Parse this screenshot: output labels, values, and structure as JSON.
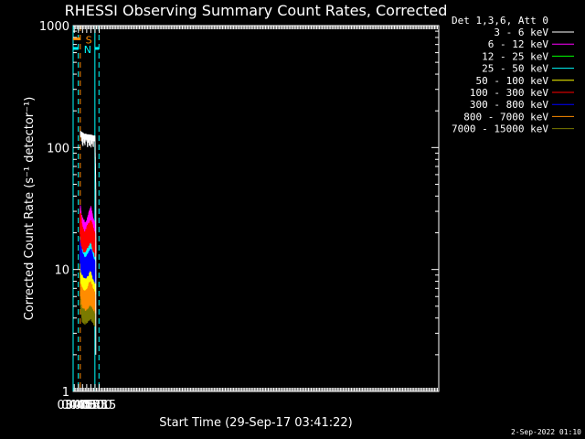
{
  "chart_data": {
    "type": "line",
    "title": "RHESSI Observing Summary Count Rates, Corrected",
    "xlabel": "Start Time (29-Sep-17 03:41:22)",
    "ylabel": "Corrected Count Rate (s⁻¹ detector⁻¹)",
    "footer_date": "2-Sep-2022 01:10",
    "x_range_min": [
      221,
      1540
    ],
    "y_range": [
      1,
      1000
    ],
    "y_scale": "log",
    "x_ticks": [
      {
        "min": 225,
        "label": "03:45"
      },
      {
        "min": 240,
        "label": "04:00"
      },
      {
        "min": 255,
        "label": "04:15"
      },
      {
        "min": 270,
        "label": "04:30"
      },
      {
        "min": 285,
        "label": "04:45"
      },
      {
        "min": 300,
        "label": "05:00"
      },
      {
        "min": 315,
        "label": "05:15"
      }
    ],
    "y_ticks": [
      {
        "value": 1,
        "label": "1"
      },
      {
        "value": 10,
        "label": "10"
      },
      {
        "value": 100,
        "label": "100"
      },
      {
        "value": 1000,
        "label": "1000"
      }
    ],
    "legend_header": "Det 1,3,6, Att 0",
    "legend_placement": "outside-right",
    "data_interval_min": [
      247.3,
      302.7
    ],
    "series": [
      {
        "name": "3 - 6 keV",
        "color": "#ffffff",
        "x": [
          247.3,
          250,
          255,
          260,
          265,
          270,
          275,
          280,
          285,
          290,
          295,
          300,
          302.7
        ],
        "y": [
          130,
          128,
          125,
          124,
          123,
          122,
          122,
          121,
          121,
          120,
          119,
          119,
          45
        ]
      },
      {
        "name": "6 - 12 keV",
        "color": "#ff00ff",
        "x": [
          247.3,
          250,
          255,
          260,
          265,
          270,
          275,
          280,
          285,
          290,
          295,
          300,
          302.7
        ],
        "y": [
          28,
          24,
          22,
          21,
          20,
          21,
          23,
          25,
          27,
          24,
          21,
          20,
          17
        ]
      },
      {
        "name": "12 - 25 keV",
        "color": "#00ff00",
        "x": [
          247.3,
          250,
          255,
          260,
          265,
          270,
          275,
          280,
          285,
          290,
          295,
          300,
          302.7
        ],
        "y": [
          26,
          22,
          20,
          19,
          18,
          19,
          21,
          23,
          25,
          22,
          19,
          18,
          16
        ]
      },
      {
        "name": "25 - 50 keV",
        "color": "#00ffff",
        "x": [
          247.3,
          250,
          255,
          260,
          265,
          270,
          275,
          280,
          285,
          290,
          295,
          300,
          302.7
        ],
        "y": [
          17,
          15,
          14,
          13,
          13,
          14,
          15,
          16,
          17,
          15,
          14,
          13,
          12
        ]
      },
      {
        "name": "50 - 100 keV",
        "color": "#ffff00",
        "x": [
          247.3,
          250,
          255,
          260,
          265,
          270,
          275,
          280,
          285,
          290,
          295,
          300,
          302.7
        ],
        "y": [
          10,
          9,
          8.5,
          8.3,
          8.2,
          8.5,
          9,
          9.5,
          10,
          9,
          8.5,
          8,
          7.5
        ]
      },
      {
        "name": "100 - 300 keV",
        "color": "#ff0000",
        "x": [
          247.3,
          250,
          255,
          260,
          265,
          270,
          275,
          280,
          285,
          290,
          295,
          300,
          302.7
        ],
        "y": [
          24,
          20,
          18,
          17,
          17,
          18,
          19,
          20,
          21,
          19,
          17,
          16,
          15
        ]
      },
      {
        "name": "300 - 800 keV",
        "color": "#0000ff",
        "x": [
          247.3,
          250,
          255,
          260,
          265,
          270,
          275,
          280,
          285,
          290,
          295,
          300,
          302.7
        ],
        "y": [
          15,
          12,
          11,
          10.5,
          10.3,
          10.5,
          11,
          11.5,
          12,
          11,
          10,
          9.5,
          9
        ]
      },
      {
        "name": "800 - 7000 keV",
        "color": "#ff8c00",
        "x": [
          247.3,
          250,
          255,
          260,
          265,
          270,
          275,
          280,
          285,
          290,
          295,
          300,
          302.7
        ],
        "y": [
          8,
          6.8,
          6.3,
          6.1,
          6.0,
          6.1,
          6.3,
          6.5,
          6.6,
          6.2,
          6.0,
          5.8,
          5.5
        ]
      },
      {
        "name": "7000 - 15000 keV",
        "color": "#7a7a00",
        "x": [
          247.3,
          250,
          255,
          260,
          265,
          270,
          275,
          280,
          285,
          290,
          295,
          300,
          302.7
        ],
        "y": [
          6,
          5.2,
          4.8,
          4.7,
          4.6,
          4.7,
          4.8,
          5.0,
          5.1,
          4.8,
          4.6,
          4.5,
          4.3
        ]
      }
    ],
    "annotations": [
      {
        "label": "N",
        "color": "#00ffff",
        "level": 650,
        "bar_min": [
          221,
          240
        ]
      },
      {
        "label": "S",
        "color": "#ff8c00",
        "level": 780,
        "bar_min": [
          221,
          246
        ]
      },
      {
        "label": "",
        "color": "#00ffff",
        "level": 650,
        "bar_min": [
          300,
          314
        ]
      }
    ],
    "vlines": [
      {
        "min": 221,
        "color": "#00ffff",
        "style": "solid"
      },
      {
        "min": 239.6,
        "color": "#00ffff",
        "style": "dashed"
      },
      {
        "min": 246.8,
        "color": "#ff8c00",
        "style": "dashed"
      },
      {
        "min": 299.6,
        "color": "#00ffff",
        "style": "solid"
      },
      {
        "min": 314.2,
        "color": "#00ffff",
        "style": "dashed"
      }
    ]
  }
}
